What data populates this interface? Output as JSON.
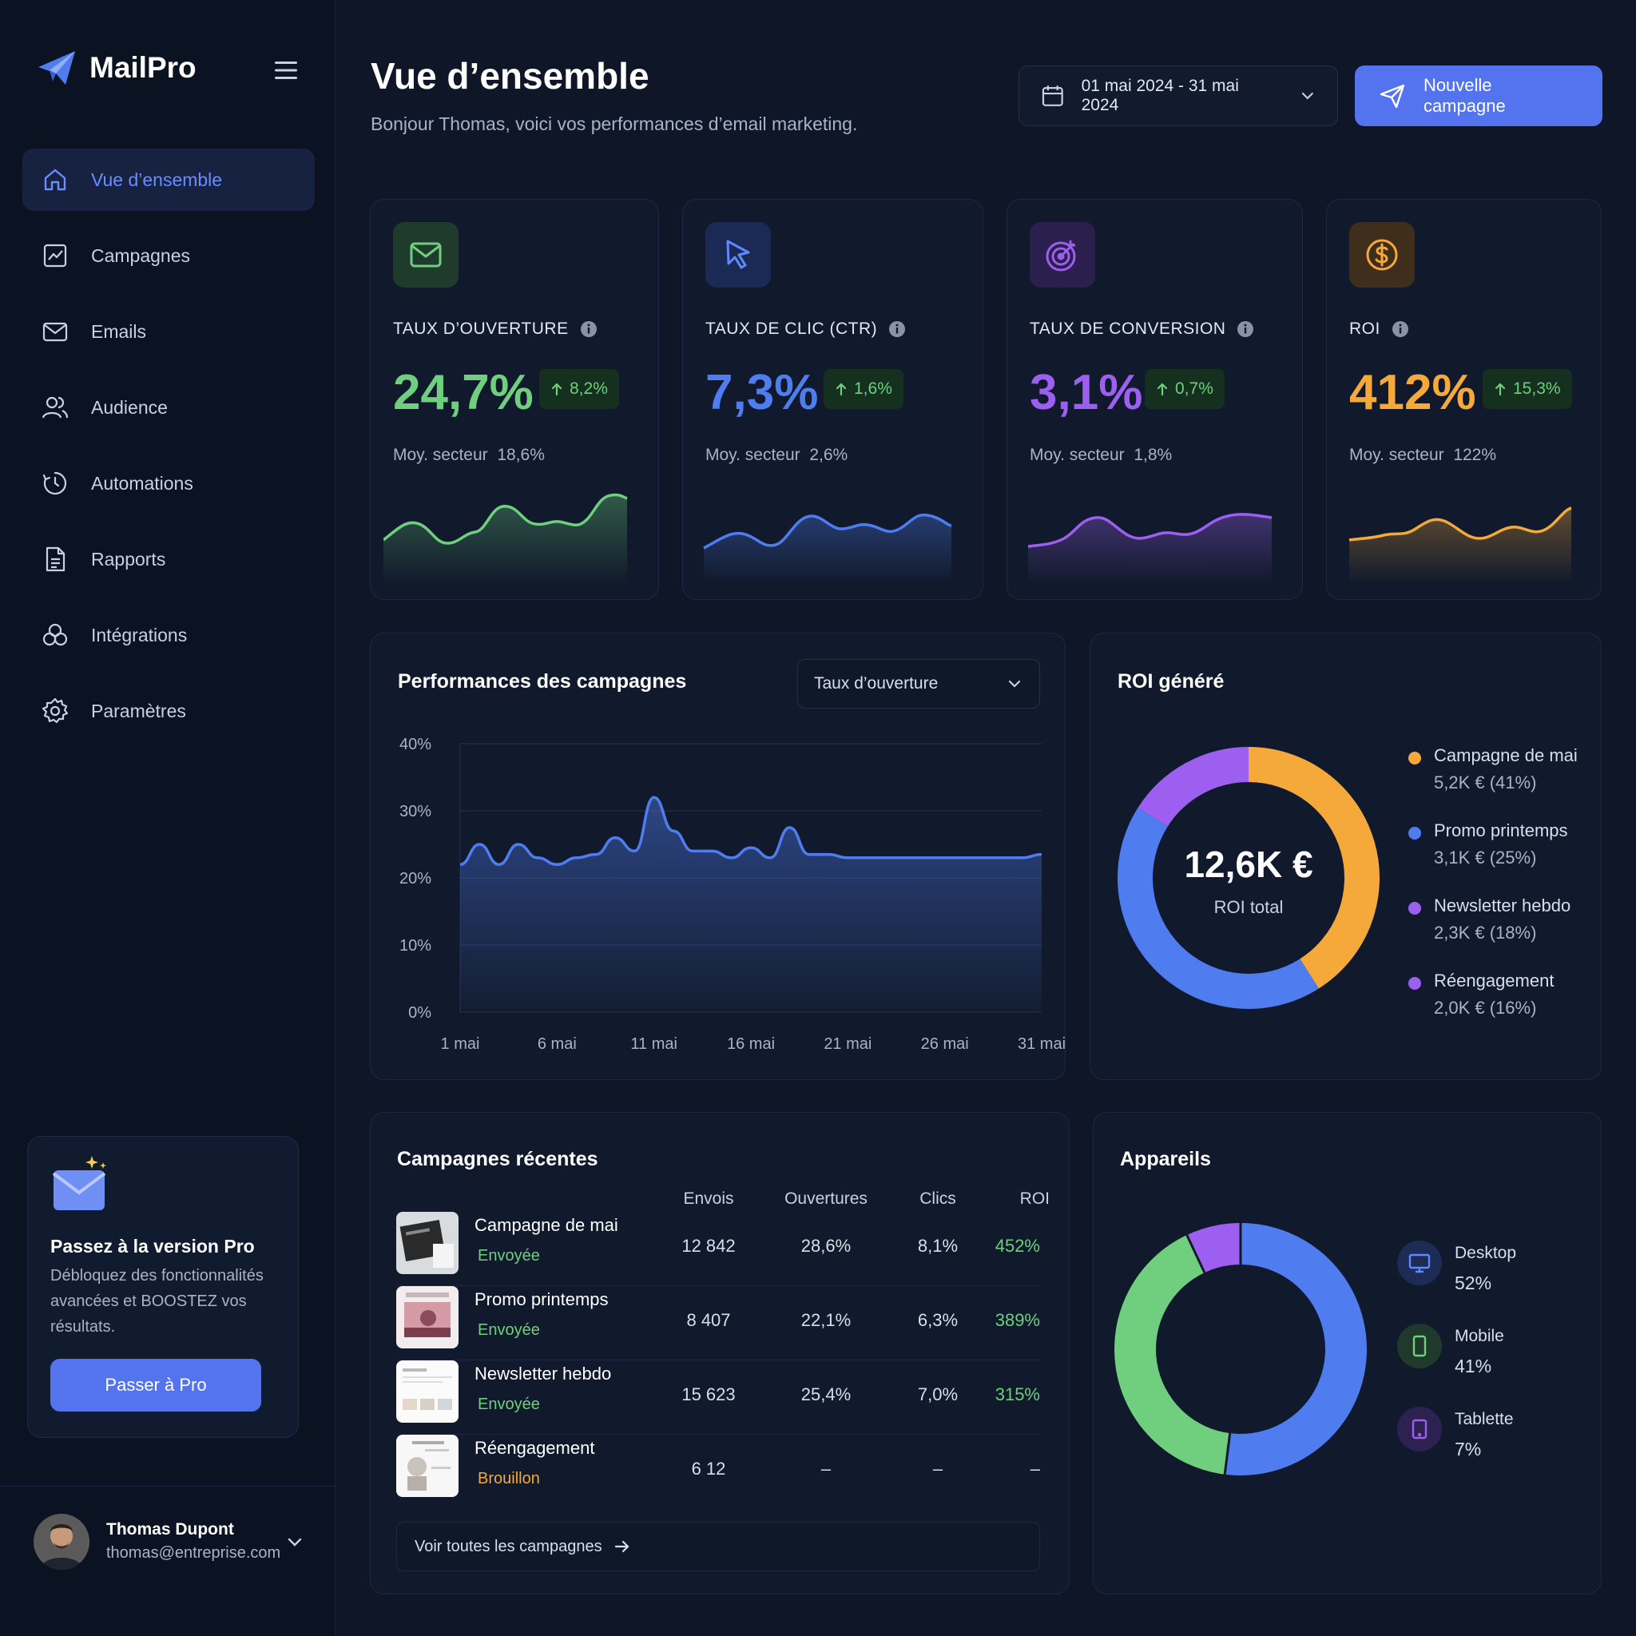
{
  "app": {
    "name": "MailPro"
  },
  "nav": {
    "items": [
      {
        "label": "Vue d’ensemble"
      },
      {
        "label": "Campagnes"
      },
      {
        "label": "Emails"
      },
      {
        "label": "Audience"
      },
      {
        "label": "Automations"
      },
      {
        "label": "Rapports"
      },
      {
        "label": "Intégrations"
      },
      {
        "label": "Paramètres"
      }
    ]
  },
  "promo": {
    "title": "Passez à la version Pro",
    "text": "Débloquez des fonctionnalités avancées et BOOSTEZ vos résultats.",
    "button": "Passer à Pro"
  },
  "user": {
    "name": "Thomas Dupont",
    "email": "thomas@entreprise.com"
  },
  "header": {
    "title": "Vue d’ensemble",
    "subtitle": "Bonjour Thomas, voici vos performances d’email marketing.",
    "date_range": "01 mai 2024 - 31 mai 2024",
    "new_campaign": "Nouvelle campagne"
  },
  "kpis": [
    {
      "label": "TAUX D’OUVERTURE",
      "value": "24,7%",
      "delta": "8,2%",
      "avg_label": "Moy. secteur",
      "avg_value": "18,6%",
      "color": "#6fcf7e",
      "icon": "envelope-icon"
    },
    {
      "label": "TAUX DE CLIC (CTR)",
      "value": "7,3%",
      "delta": "1,6%",
      "avg_label": "Moy. secteur",
      "avg_value": "2,6%",
      "color": "#4f7df0",
      "icon": "cursor-icon"
    },
    {
      "label": "TAUX DE CONVERSION",
      "value": "3,1%",
      "delta": "0,7%",
      "avg_label": "Moy. secteur",
      "avg_value": "1,8%",
      "color": "#9d5ff0",
      "icon": "target-icon"
    },
    {
      "label": "ROI",
      "value": "412%",
      "delta": "15,3%",
      "avg_label": "Moy. secteur",
      "avg_value": "122%",
      "color": "#f5a93a",
      "icon": "dollar-icon"
    }
  ],
  "performance": {
    "title": "Performances des campagnes",
    "metric": "Taux d’ouverture",
    "chart_data": {
      "type": "area",
      "x": [
        "1 mai",
        "2 mai",
        "3 mai",
        "4 mai",
        "5 mai",
        "6 mai",
        "7 mai",
        "8 mai",
        "9 mai",
        "10 mai",
        "11 mai",
        "12 mai",
        "13 mai",
        "14 mai",
        "15 mai",
        "16 mai",
        "17 mai",
        "18 mai",
        "19 mai",
        "20 mai",
        "21 mai",
        "22 mai",
        "23 mai",
        "24 mai",
        "25 mai",
        "26 mai",
        "27 mai",
        "28 mai",
        "29 mai",
        "30 mai",
        "31 mai"
      ],
      "values": [
        22,
        25,
        22,
        25,
        23,
        22,
        23,
        23.5,
        26,
        24,
        32,
        27,
        24,
        24,
        23,
        24.5,
        23,
        27.5,
        23.5,
        23.5,
        23,
        23,
        23,
        23,
        23,
        23,
        23,
        23,
        23,
        23,
        23.5
      ],
      "x_ticks": [
        "1 mai",
        "6 mai",
        "11 mai",
        "16 mai",
        "21 mai",
        "26 mai",
        "31 mai"
      ],
      "y_ticks": [
        "40%",
        "30%",
        "20%",
        "10%",
        "0%"
      ],
      "ylim": [
        0,
        40
      ],
      "grid": true,
      "color": "#4f7df0"
    }
  },
  "roi": {
    "title": "ROI généré",
    "total": "12,6K €",
    "total_label": "ROI total",
    "chart_data": {
      "type": "pie",
      "labels": [
        "Campagne de mai",
        "Promo printemps",
        "Newsletter hebdo",
        "Réengagement"
      ],
      "values": [
        41,
        25,
        18,
        16
      ],
      "display": [
        "5,2K € (41%)",
        "3,1K € (25%)",
        "2,3K € (18%)",
        "2,0K € (16%)"
      ],
      "colors": [
        "#f5a93a",
        "#4f7df0",
        "#9d5ff0",
        "#9d5ff0"
      ]
    }
  },
  "recent": {
    "title": "Campagnes récentes",
    "columns": [
      "Envois",
      "Ouvertures",
      "Clics",
      "ROI"
    ],
    "rows": [
      {
        "name": "Campagne de mai",
        "status": "Envoyée",
        "status_color": "#6fcf7e",
        "sends": "12 842",
        "opens": "28,6%",
        "clicks": "8,1%",
        "roi": "452%"
      },
      {
        "name": "Promo printemps",
        "status": "Envoyée",
        "status_color": "#6fcf7e",
        "sends": "8 407",
        "opens": "22,1%",
        "clicks": "6,3%",
        "roi": "389%"
      },
      {
        "name": "Newsletter hebdo",
        "status": "Envoyée",
        "status_color": "#6fcf7e",
        "sends": "15 623",
        "opens": "25,4%",
        "clicks": "7,0%",
        "roi": "315%"
      },
      {
        "name": "Réengagement",
        "status": "Brouillon",
        "status_color": "#f5a93a",
        "sends": "6 12",
        "opens": "–",
        "clicks": "–",
        "roi": "–"
      }
    ],
    "see_all": "Voir toutes les campagnes"
  },
  "devices": {
    "title": "Appareils",
    "chart_data": {
      "type": "pie",
      "labels": [
        "Desktop",
        "Mobile",
        "Tablette"
      ],
      "values": [
        52,
        41,
        7
      ],
      "display": [
        "52%",
        "41%",
        "7%"
      ],
      "colors": [
        "#4f7df0",
        "#6fcf7e",
        "#9d5ff0"
      ]
    }
  }
}
